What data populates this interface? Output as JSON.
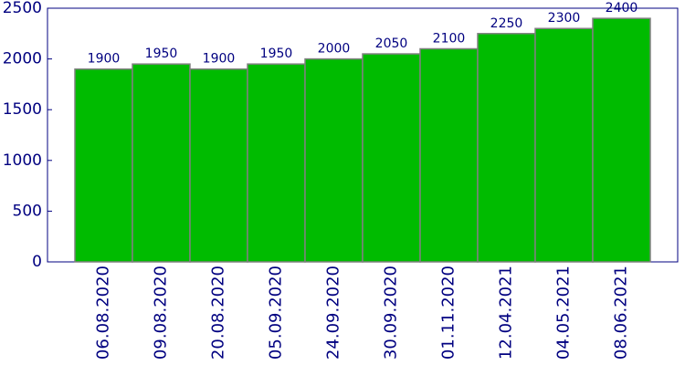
{
  "chart_data": {
    "type": "bar",
    "categories": [
      "06.08.2020",
      "09.08.2020",
      "20.08.2020",
      "05.09.2020",
      "24.09.2020",
      "30.09.2020",
      "01.11.2020",
      "12.04.2021",
      "04.05.2021",
      "08.06.2021"
    ],
    "values": [
      1900,
      1950,
      1900,
      1950,
      2000,
      2050,
      2100,
      2250,
      2300,
      2400
    ],
    "color": "#00bb00",
    "ylim": [
      0,
      2500
    ],
    "yticks": [
      0,
      500,
      1000,
      1500,
      2000,
      2500
    ],
    "grid": false
  }
}
